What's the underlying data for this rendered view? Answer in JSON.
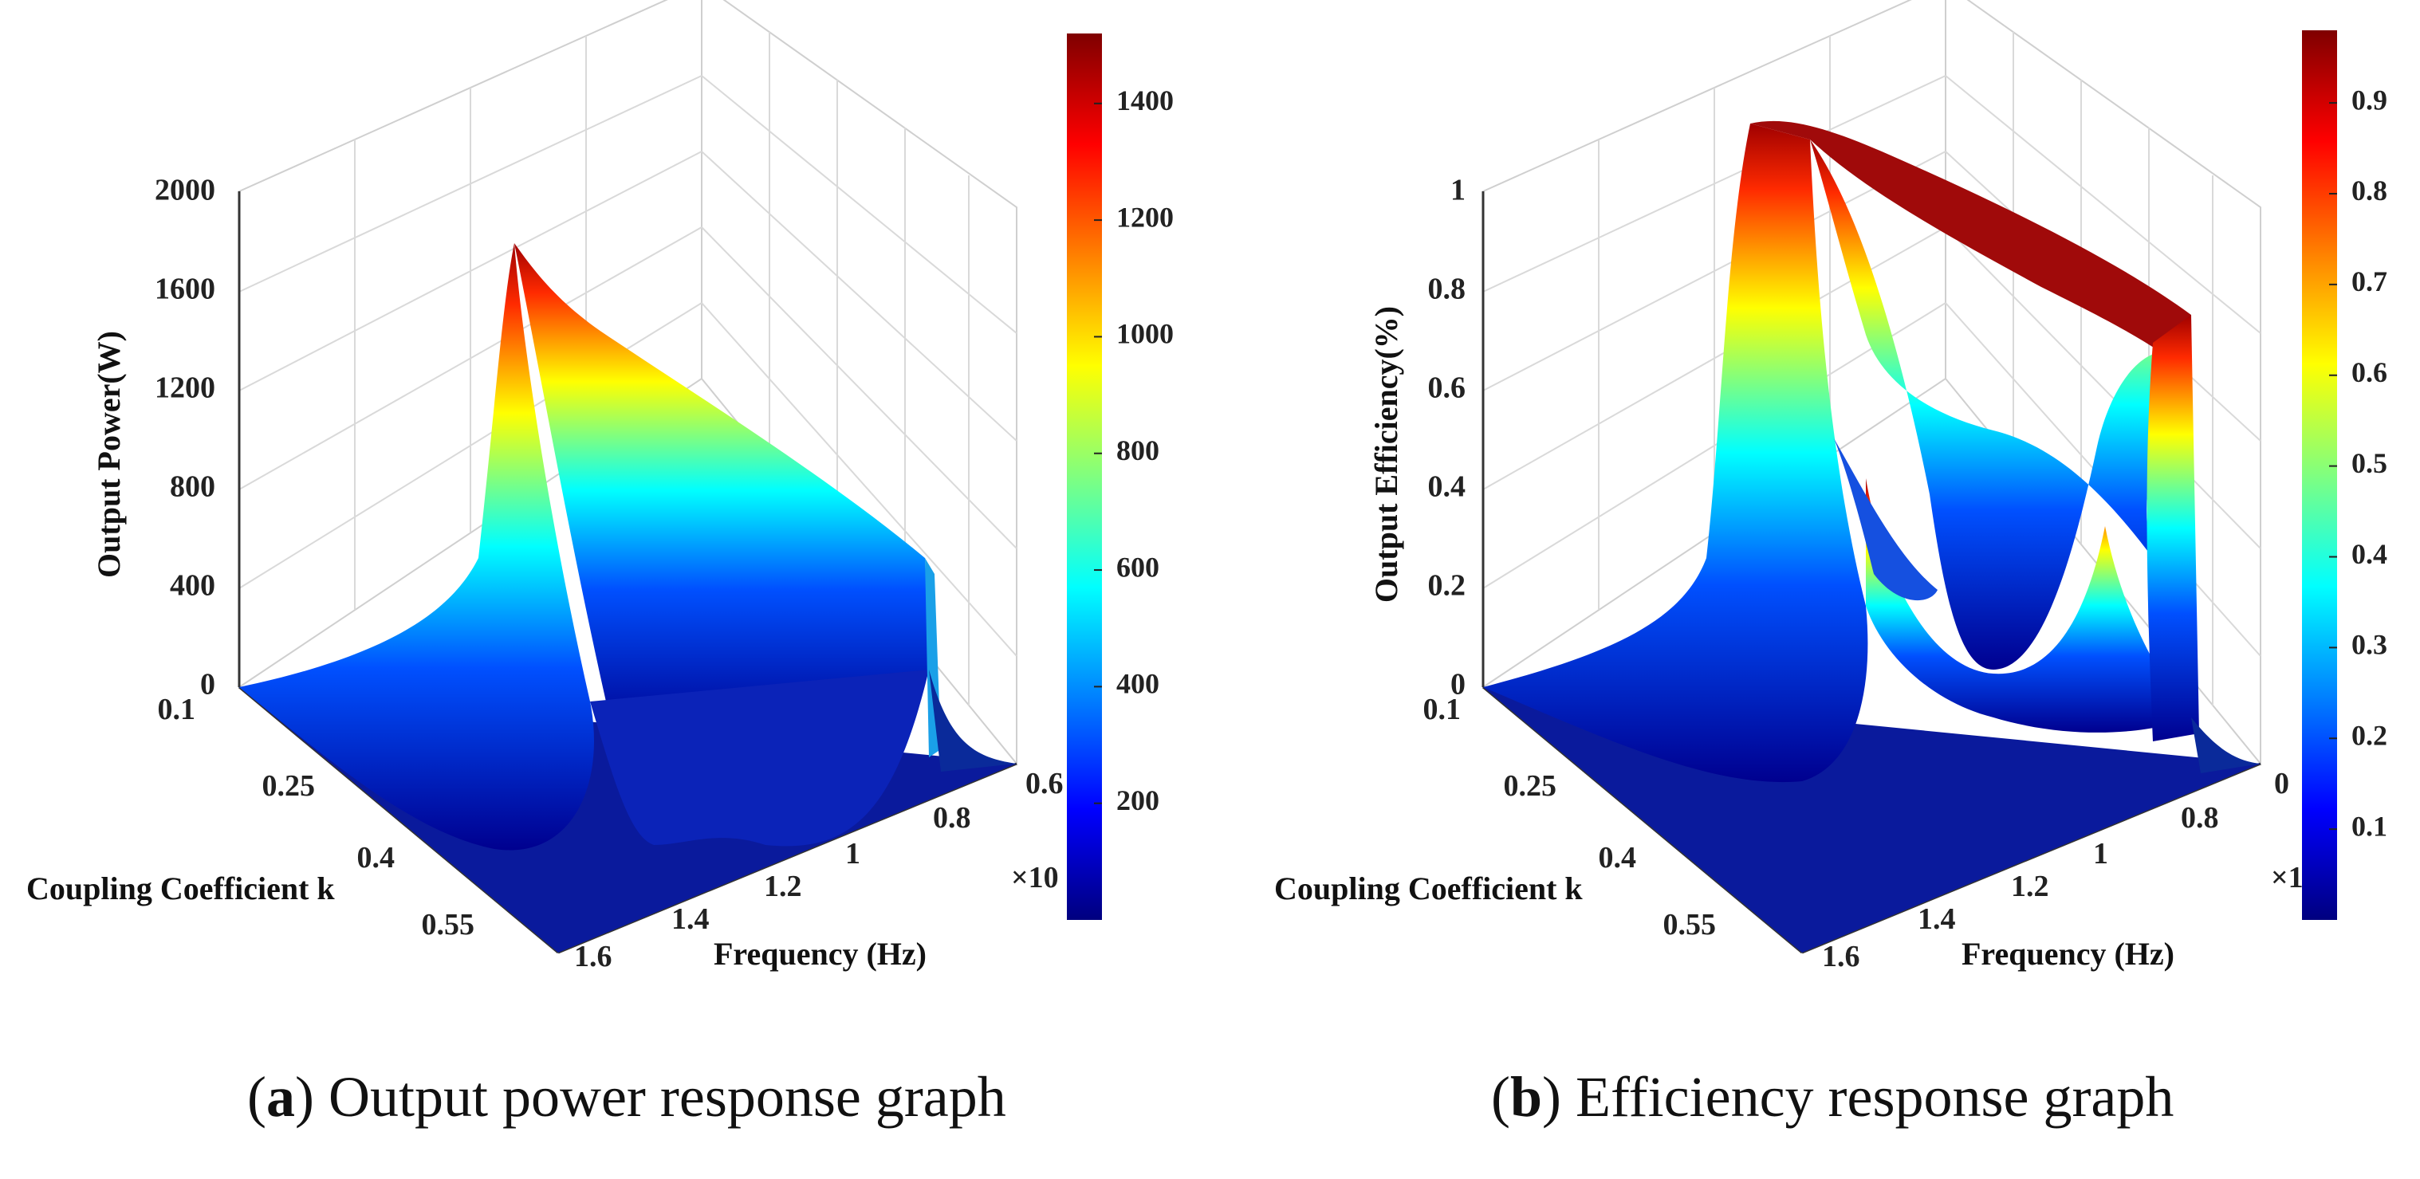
{
  "chart_data": [
    {
      "type": "surface",
      "panel": "a",
      "zlabel": "Output Power(W)",
      "xlabel": "Frequency (Hz)",
      "ylabel": "Coupling Coefficient k",
      "z_ticks": [
        "0",
        "400",
        "800",
        "1200",
        "1600",
        "2000"
      ],
      "zlim": [
        0,
        2000
      ],
      "k_ticks": [
        "0.1",
        "0.25",
        "0.4",
        "0.55"
      ],
      "freq_ticks": [
        "1.6",
        "1.4",
        "1.2",
        "1",
        "0.8",
        "0.6"
      ],
      "freq_exponent": "×10",
      "peak_value": 1900,
      "colorbar": {
        "ticks": [
          "200",
          "400",
          "600",
          "800",
          "1000",
          "1200",
          "1400"
        ],
        "range": [
          0,
          1520
        ]
      },
      "caption_letter": "a",
      "caption_text": " Output power response graph"
    },
    {
      "type": "surface",
      "panel": "b",
      "zlabel": "Output Efficiency(%)",
      "xlabel": "Frequency (Hz)",
      "ylabel": "Coupling Coefficient k",
      "z_ticks": [
        "0",
        "0.2",
        "0.4",
        "0.6",
        "0.8",
        "1"
      ],
      "zlim": [
        0,
        1
      ],
      "k_ticks": [
        "0.1",
        "0.25",
        "0.4",
        "0.55"
      ],
      "freq_ticks": [
        "1.6",
        "1.4",
        "1.2",
        "1",
        "0.8",
        "0"
      ],
      "freq_exponent": "×1",
      "peak_value": 0.98,
      "colorbar": {
        "ticks": [
          "0.1",
          "0.2",
          "0.3",
          "0.4",
          "0.5",
          "0.6",
          "0.7",
          "0.8",
          "0.9"
        ],
        "range": [
          0,
          0.98
        ]
      },
      "caption_letter": "b",
      "caption_text": " Efficiency response graph"
    }
  ]
}
